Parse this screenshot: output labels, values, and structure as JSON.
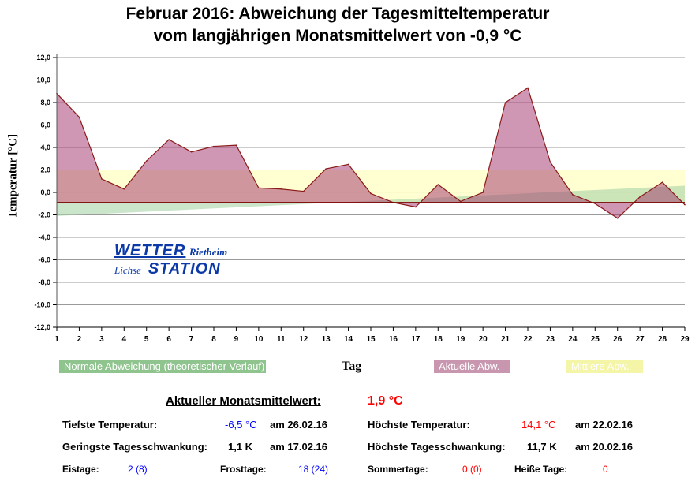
{
  "title_line1": "Februar 2016: Abweichung der Tagesmitteltemperatur",
  "title_line2": "vom langjährigen Monatsmittelwert von -0,9 °C",
  "logo": {
    "w1": "WETTER",
    "w2": "Rietheim",
    "w3": "Lichse",
    "w4": "STATION"
  },
  "chart_data": {
    "type": "area",
    "xlabel": "Tag",
    "ylabel": "Temperatur [°C]",
    "x": [
      1,
      2,
      3,
      4,
      5,
      6,
      7,
      8,
      9,
      10,
      11,
      12,
      13,
      14,
      15,
      16,
      17,
      18,
      19,
      20,
      21,
      22,
      23,
      24,
      25,
      26,
      27,
      28,
      29
    ],
    "ylim": [
      -12,
      12
    ],
    "yticks": [
      "12,0",
      "10,0",
      "8,0",
      "6,0",
      "4,0",
      "2,0",
      "0,0",
      "-2,0",
      "-4,0",
      "-6,0",
      "-8,0",
      "-10,0",
      "-12,0"
    ],
    "baseline": -0.9,
    "series": [
      {
        "name": "Aktuelle Abw.",
        "values": [
          8.8,
          6.7,
          1.2,
          0.3,
          2.8,
          4.7,
          3.6,
          4.1,
          4.2,
          0.4,
          0.3,
          0.1,
          2.1,
          2.5,
          -0.1,
          -0.9,
          -1.3,
          0.7,
          -0.8,
          0.0,
          8.0,
          9.3,
          2.7,
          -0.2,
          -1.0,
          -2.3,
          -0.4,
          0.9,
          -1.1
        ],
        "color": "#c896ae"
      },
      {
        "name": "Mittlere Abw.",
        "band": [
          -0.9,
          2.0
        ],
        "color": "#ffffcc"
      },
      {
        "name": "Normale Abweichung (theoretischer Verlauf)",
        "start": -2.1,
        "end": 0.6,
        "color": "#a9d4a9"
      }
    ],
    "grid": true
  },
  "legend": {
    "normal": "Normale Abweichung (theoretischer Verlauf)",
    "actual": "Aktuelle Abw.",
    "mean": "Mittlere Abw.",
    "normal_color": "#8fc48f",
    "actual_color": "#c896ae",
    "mean_color": "#f5f5a8"
  },
  "stats": {
    "month_mean_label": "Aktueller Monatsmittelwert:",
    "month_mean": "1,9 °C",
    "min_label": "Tiefste Temperatur:",
    "min_value": "-6,5 °C",
    "min_date": "am 26.02.16",
    "max_label": "Höchste Temperatur:",
    "max_value": "14,1 °C",
    "max_date": "am 22.02.16",
    "minrange_label": "Geringste Tagesschwankung:",
    "minrange_value": "1,1 K",
    "minrange_date": "am 17.02.16",
    "maxrange_label": "Höchste Tagesschwankung:",
    "maxrange_value": "11,7 K",
    "maxrange_date": "am 20.02.16",
    "ice_label": "Eistage:",
    "ice_value": "2 (8)",
    "frost_label": "Frosttage:",
    "frost_value": "18 (24)",
    "summer_label": "Sommertage:",
    "summer_value": "0 (0)",
    "hot_label": "Heiße Tage:",
    "hot_value": "0"
  }
}
